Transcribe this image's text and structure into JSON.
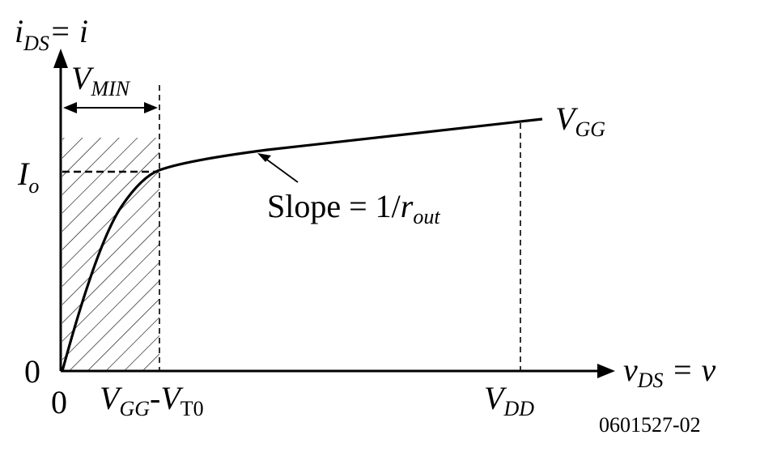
{
  "axes": {
    "y_label": {
      "main": "i",
      "sub": "DS",
      "rest": "= i"
    },
    "x_label": {
      "main": "v",
      "sub": "DS",
      "rest": " = v"
    }
  },
  "labels": {
    "vmin": {
      "main": "V",
      "sub": "MIN"
    },
    "io": {
      "main": "I",
      "sub": "o"
    },
    "vgg_curve": {
      "main": "V",
      "sub": "GG"
    },
    "slope": {
      "text": "Slope = 1/",
      "r": "r",
      "sub": "out"
    },
    "zero_y": "0",
    "zero_x": "0",
    "vgg_vt0": {
      "v1": "V",
      "sub1": "GG",
      "dash": "-",
      "v2": "V",
      "sub2": "T0"
    },
    "vdd": {
      "main": "V",
      "sub": "DD"
    }
  },
  "figure_code": "0601527-02"
}
